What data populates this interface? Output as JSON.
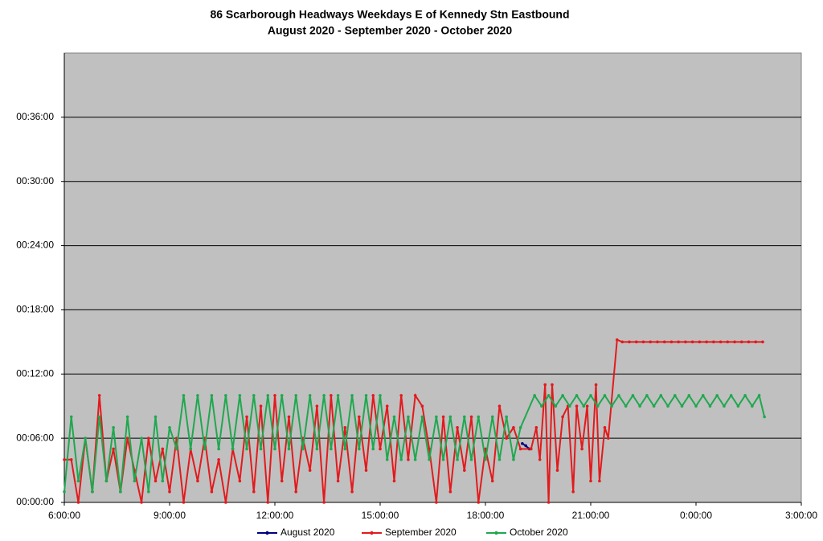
{
  "chart_data": {
    "type": "line",
    "title": "86 Scarborough Headways Weekdays E of Kennedy Stn Eastbound",
    "subtitle": "August 2020 - September 2020 - October 2020",
    "xlim": [
      6,
      27
    ],
    "xticks": [
      {
        "value": 6,
        "label": "6:00:00"
      },
      {
        "value": 9,
        "label": "9:00:00"
      },
      {
        "value": 12,
        "label": "12:00:00"
      },
      {
        "value": 15,
        "label": "15:00:00"
      },
      {
        "value": 18,
        "label": "18:00:00"
      },
      {
        "value": 21,
        "label": "21:00:00"
      },
      {
        "value": 24,
        "label": "0:00:00"
      },
      {
        "value": 27,
        "label": "3:00:00"
      }
    ],
    "ylim": [
      0,
      42
    ],
    "yticks": [
      {
        "value": 0,
        "label": "00:00:00"
      },
      {
        "value": 6,
        "label": "00:06:00"
      },
      {
        "value": 12,
        "label": "00:12:00"
      },
      {
        "value": 18,
        "label": "00:18:00"
      },
      {
        "value": 24,
        "label": "00:24:00"
      },
      {
        "value": 30,
        "label": "00:30:00"
      },
      {
        "value": 36,
        "label": "00:36:00"
      }
    ],
    "grid": true,
    "legend": "bottom",
    "series": [
      {
        "name": "August 2020",
        "color": "#000080",
        "x": [
          19.05,
          19.15,
          19.25
        ],
        "values": [
          5.5,
          5.3,
          5
        ]
      },
      {
        "name": "September 2020",
        "color": "#e31a1c",
        "x": [
          6,
          6.2,
          6.4,
          6.6,
          6.8,
          7,
          7.2,
          7.4,
          7.6,
          7.8,
          8,
          8.2,
          8.4,
          8.6,
          8.8,
          9,
          9.2,
          9.4,
          9.6,
          9.8,
          10,
          10.2,
          10.4,
          10.6,
          10.8,
          11,
          11.2,
          11.4,
          11.6,
          11.8,
          12,
          12.2,
          12.4,
          12.6,
          12.8,
          13,
          13.2,
          13.4,
          13.6,
          13.8,
          14,
          14.2,
          14.4,
          14.6,
          14.8,
          15,
          15.2,
          15.4,
          15.6,
          15.8,
          16,
          16.2,
          16.4,
          16.6,
          16.8,
          17,
          17.2,
          17.4,
          17.6,
          17.8,
          18,
          18.2,
          18.4,
          18.6,
          18.8,
          19,
          19.3,
          19.45,
          19.55,
          19.7,
          19.8,
          19.9,
          20.05,
          20.2,
          20.35,
          20.5,
          20.6,
          20.75,
          20.9,
          21.0,
          21.15,
          21.25,
          21.4,
          21.5,
          21.75,
          21.9,
          22.1,
          22.3,
          22.5,
          22.7,
          22.9,
          23.1,
          23.3,
          23.5,
          23.7,
          23.9,
          24.1,
          24.3,
          24.5,
          24.7,
          24.9,
          25.1,
          25.3,
          25.5,
          25.7,
          25.9
        ],
        "values": [
          4,
          4,
          0,
          6,
          1,
          10,
          2,
          5,
          1,
          6,
          3,
          0,
          6,
          2,
          5,
          1,
          6,
          0,
          5,
          2,
          6,
          1,
          4,
          0,
          5,
          2,
          8,
          1,
          9,
          0,
          10,
          2,
          8,
          1,
          6,
          3,
          9,
          0,
          10,
          2,
          7,
          1,
          8,
          3,
          10,
          5,
          9,
          2,
          10,
          4,
          10,
          9,
          5,
          0,
          8,
          1,
          7,
          3,
          8,
          0,
          5,
          2,
          9,
          6,
          7,
          5,
          5,
          7,
          4,
          11,
          0,
          11,
          3,
          8,
          9,
          1,
          9,
          5,
          9,
          2,
          11,
          2,
          7,
          6,
          15.2,
          15,
          15,
          15,
          15,
          15,
          15,
          15,
          15,
          15,
          15,
          15,
          15,
          15,
          15,
          15,
          15,
          15,
          15,
          15,
          15,
          15
        ]
      },
      {
        "name": "October 2020",
        "color": "#1fa84f",
        "x": [
          6,
          6.2,
          6.4,
          6.6,
          6.8,
          7,
          7.2,
          7.4,
          7.6,
          7.8,
          8,
          8.2,
          8.4,
          8.6,
          8.8,
          9,
          9.2,
          9.4,
          9.6,
          9.8,
          10,
          10.2,
          10.4,
          10.6,
          10.8,
          11,
          11.2,
          11.4,
          11.6,
          11.8,
          12,
          12.2,
          12.4,
          12.6,
          12.8,
          13,
          13.2,
          13.4,
          13.6,
          13.8,
          14,
          14.2,
          14.4,
          14.6,
          14.8,
          15,
          15.2,
          15.4,
          15.6,
          15.8,
          16,
          16.2,
          16.4,
          16.6,
          16.8,
          17,
          17.2,
          17.4,
          17.6,
          17.8,
          18,
          18.2,
          18.4,
          18.6,
          18.8,
          19,
          19.4,
          19.6,
          19.8,
          20,
          20.2,
          20.4,
          20.6,
          20.8,
          21,
          21.2,
          21.4,
          21.6,
          21.8,
          22,
          22.2,
          22.4,
          22.6,
          22.8,
          23,
          23.2,
          23.4,
          23.6,
          23.8,
          24,
          24.2,
          24.4,
          24.6,
          24.8,
          25,
          25.2,
          25.4,
          25.6,
          25.8,
          25.95
        ],
        "values": [
          1,
          8,
          2,
          6,
          1,
          8,
          2,
          7,
          1,
          8,
          2,
          6,
          1,
          8,
          2,
          7,
          5,
          10,
          5,
          10,
          5,
          10,
          5,
          10,
          5,
          10,
          5,
          10,
          5,
          10,
          5,
          10,
          5,
          10,
          5,
          10,
          5,
          10,
          5,
          10,
          5,
          10,
          5,
          10,
          5,
          10,
          4,
          8,
          4,
          8,
          4,
          8,
          4,
          8,
          4,
          8,
          4,
          8,
          4,
          8,
          4,
          8,
          4,
          8,
          4,
          7,
          10,
          9,
          10,
          9,
          10,
          9,
          10,
          9,
          10,
          9,
          10,
          9,
          10,
          9,
          10,
          9,
          10,
          9,
          10,
          9,
          10,
          9,
          10,
          9,
          10,
          9,
          10,
          9,
          10,
          9,
          10,
          9,
          10,
          8
        ]
      }
    ]
  }
}
